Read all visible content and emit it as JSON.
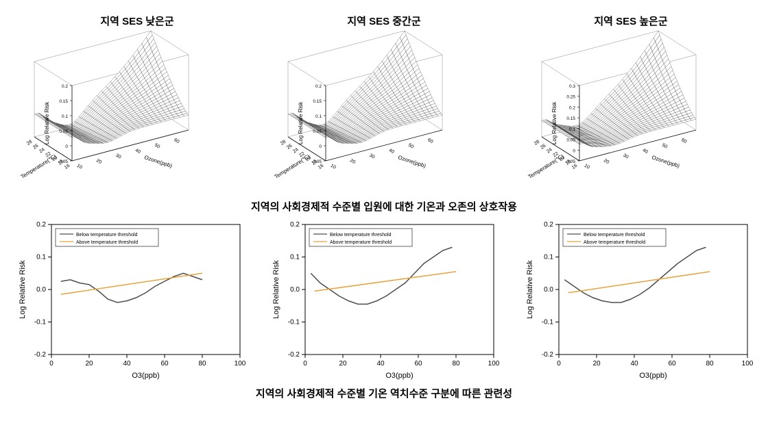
{
  "titles": {
    "low": "지역 SES 낮은군",
    "mid": "지역 SES 중간군",
    "high": "지역 SES 높은군"
  },
  "caption3d": "지역의 사회경제적 수준별 입원에 대한 기온과 오존의 상호작용",
  "caption2d": "지역의 사회경제적 수준별 기온 역치수준 구분에 따른 관련성",
  "surface3d": {
    "zlabel": "Log Relative Risk",
    "xlabel": "Temperature(℃)",
    "ylabel": "Ozone(ppb)",
    "x_range": [
      16,
      28
    ],
    "y_range": [
      10,
      70
    ],
    "x_ticks": [
      16,
      18,
      20,
      22,
      24,
      26,
      28
    ],
    "y_ticks": [
      10,
      20,
      30,
      40,
      50,
      60
    ],
    "z_ticks_low": [
      -0.05,
      0,
      0.05,
      0.1,
      0.15,
      0.2
    ],
    "z_ticks_mid": [
      -0.05,
      0,
      0.05,
      0.1,
      0.15,
      0.2
    ],
    "z_ticks_high": [
      -0.05,
      0,
      0.05,
      0.1,
      0.15,
      0.2,
      0.25,
      0.3
    ],
    "mesh_color": "#000000",
    "mesh_fill": "#ffffff",
    "grid_color": "#cccccc",
    "background": "#ffffff",
    "nx": 26,
    "ny": 26,
    "peak_low": 0.2,
    "peak_mid": 0.2,
    "peak_high": 0.3
  },
  "line2d": {
    "xlabel": "O3(ppb)",
    "ylabel": "Log Relative Risk",
    "x_range": [
      0,
      100
    ],
    "y_range": [
      -0.2,
      0.2
    ],
    "x_ticks": [
      0,
      20,
      40,
      60,
      80,
      100
    ],
    "y_ticks": [
      -0.2,
      -0.1,
      0.0,
      0.1,
      0.2
    ],
    "legend": {
      "below": "Below temperature threshold",
      "above": "Above temperature threshold",
      "below_color": "#4d4d4d",
      "above_color": "#e8a23d"
    },
    "curve_color_below": "#4d4d4d",
    "curve_color_above": "#e8a23d",
    "line_width": 1.5,
    "panels": {
      "low": {
        "below": [
          [
            5,
            0.025
          ],
          [
            10,
            0.03
          ],
          [
            15,
            0.02
          ],
          [
            20,
            0.015
          ],
          [
            25,
            -0.005
          ],
          [
            30,
            -0.03
          ],
          [
            35,
            -0.04
          ],
          [
            40,
            -0.035
          ],
          [
            45,
            -0.025
          ],
          [
            50,
            -0.01
          ],
          [
            55,
            0.01
          ],
          [
            60,
            0.025
          ],
          [
            65,
            0.04
          ],
          [
            70,
            0.05
          ],
          [
            75,
            0.04
          ],
          [
            80,
            0.03
          ]
        ],
        "above": [
          [
            5,
            -0.015
          ],
          [
            80,
            0.05
          ]
        ]
      },
      "mid": {
        "below": [
          [
            3,
            0.05
          ],
          [
            8,
            0.02
          ],
          [
            13,
            0.0
          ],
          [
            18,
            -0.02
          ],
          [
            23,
            -0.035
          ],
          [
            28,
            -0.045
          ],
          [
            33,
            -0.045
          ],
          [
            38,
            -0.035
          ],
          [
            43,
            -0.02
          ],
          [
            48,
            0.0
          ],
          [
            53,
            0.02
          ],
          [
            58,
            0.05
          ],
          [
            63,
            0.08
          ],
          [
            68,
            0.1
          ],
          [
            73,
            0.12
          ],
          [
            78,
            0.13
          ]
        ],
        "above": [
          [
            5,
            -0.005
          ],
          [
            80,
            0.055
          ]
        ]
      },
      "high": {
        "below": [
          [
            3,
            0.03
          ],
          [
            8,
            0.01
          ],
          [
            13,
            -0.01
          ],
          [
            18,
            -0.025
          ],
          [
            23,
            -0.035
          ],
          [
            28,
            -0.04
          ],
          [
            33,
            -0.04
          ],
          [
            38,
            -0.03
          ],
          [
            43,
            -0.015
          ],
          [
            48,
            0.005
          ],
          [
            53,
            0.03
          ],
          [
            58,
            0.055
          ],
          [
            63,
            0.08
          ],
          [
            68,
            0.1
          ],
          [
            73,
            0.12
          ],
          [
            78,
            0.13
          ]
        ],
        "above": [
          [
            5,
            -0.01
          ],
          [
            80,
            0.055
          ]
        ]
      }
    }
  }
}
